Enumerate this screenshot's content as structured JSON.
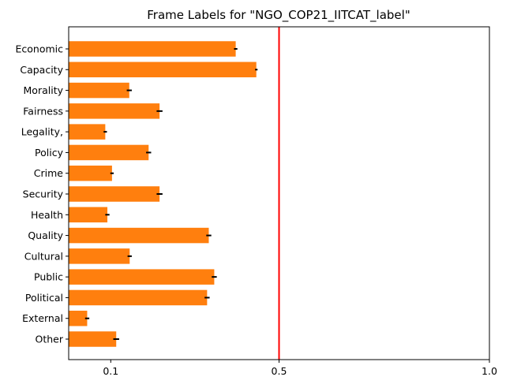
{
  "chart_data": {
    "type": "bar",
    "orientation": "horizontal",
    "title": "Frame Labels for \"NGO_COP21_IITCAT_label\"",
    "xlabel": "",
    "ylabel": "",
    "xlim": [
      0.0,
      1.0
    ],
    "x_ticks": [
      {
        "value": 0.1,
        "label": "0.1"
      },
      {
        "value": 0.5,
        "label": "0.5"
      },
      {
        "value": 1.0,
        "label": "1.0"
      }
    ],
    "grid": false,
    "bar_color": "#ff7f0e",
    "error_bar_color": "#000000",
    "reference_line": {
      "value": 0.5,
      "color": "#ff0000"
    },
    "categories": [
      "Economic",
      "Capacity",
      "Morality",
      "Fairness",
      "Legality,",
      "Policy",
      "Crime",
      "Security",
      "Health",
      "Quality",
      "Cultural",
      "Public",
      "Political",
      "External",
      "Other"
    ],
    "values": [
      0.397,
      0.446,
      0.144,
      0.216,
      0.087,
      0.19,
      0.103,
      0.216,
      0.092,
      0.333,
      0.145,
      0.346,
      0.329,
      0.044,
      0.113
    ],
    "errors": [
      0.004,
      0.003,
      0.006,
      0.007,
      0.004,
      0.006,
      0.004,
      0.007,
      0.005,
      0.006,
      0.005,
      0.006,
      0.006,
      0.005,
      0.007
    ]
  }
}
